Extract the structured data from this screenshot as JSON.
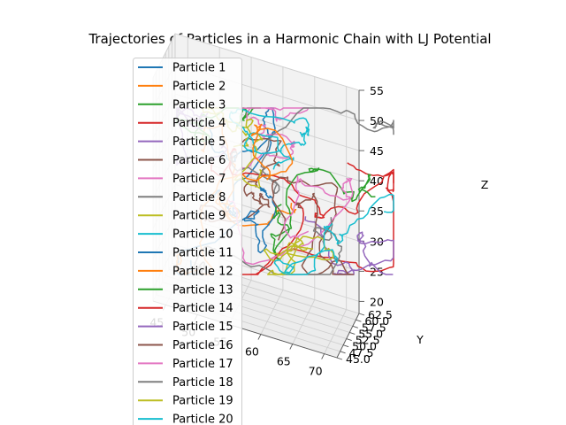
{
  "chart_data": {
    "type": "line",
    "projection": "3d",
    "title": "Trajectories of Particles in a Harmonic Chain with LJ Potential",
    "xlabel": "",
    "ylabel": "Y",
    "zlabel": "Z",
    "xlim": [
      43,
      72
    ],
    "ylim": [
      45,
      62.5
    ],
    "zlim": [
      18,
      55
    ],
    "x_ticks": [
      45,
      50,
      55,
      60,
      65,
      70
    ],
    "y_ticks": [
      "45.0",
      "47.5",
      "50.0",
      "52.5",
      "55.0",
      "57.5",
      "60.0",
      "62.5"
    ],
    "z_ticks": [
      20,
      25,
      30,
      35,
      40,
      45,
      50,
      55
    ],
    "grid": true,
    "legend_position": "upper-left",
    "series": [
      {
        "name": "Particle 1",
        "color": "#1f77b4"
      },
      {
        "name": "Particle 2",
        "color": "#ff7f0e"
      },
      {
        "name": "Particle 3",
        "color": "#2ca02c"
      },
      {
        "name": "Particle 4",
        "color": "#d62728"
      },
      {
        "name": "Particle 5",
        "color": "#9467bd"
      },
      {
        "name": "Particle 6",
        "color": "#8c564b"
      },
      {
        "name": "Particle 7",
        "color": "#e377c2"
      },
      {
        "name": "Particle 8",
        "color": "#7f7f7f"
      },
      {
        "name": "Particle 9",
        "color": "#bcbd22"
      },
      {
        "name": "Particle 10",
        "color": "#17becf"
      },
      {
        "name": "Particle 11",
        "color": "#1f77b4"
      },
      {
        "name": "Particle 12",
        "color": "#ff7f0e"
      },
      {
        "name": "Particle 13",
        "color": "#2ca02c"
      },
      {
        "name": "Particle 14",
        "color": "#d62728"
      },
      {
        "name": "Particle 15",
        "color": "#9467bd"
      },
      {
        "name": "Particle 16",
        "color": "#8c564b"
      },
      {
        "name": "Particle 17",
        "color": "#e377c2"
      },
      {
        "name": "Particle 18",
        "color": "#7f7f7f"
      },
      {
        "name": "Particle 19",
        "color": "#bcbd22"
      },
      {
        "name": "Particle 20",
        "color": "#17becf"
      }
    ]
  }
}
